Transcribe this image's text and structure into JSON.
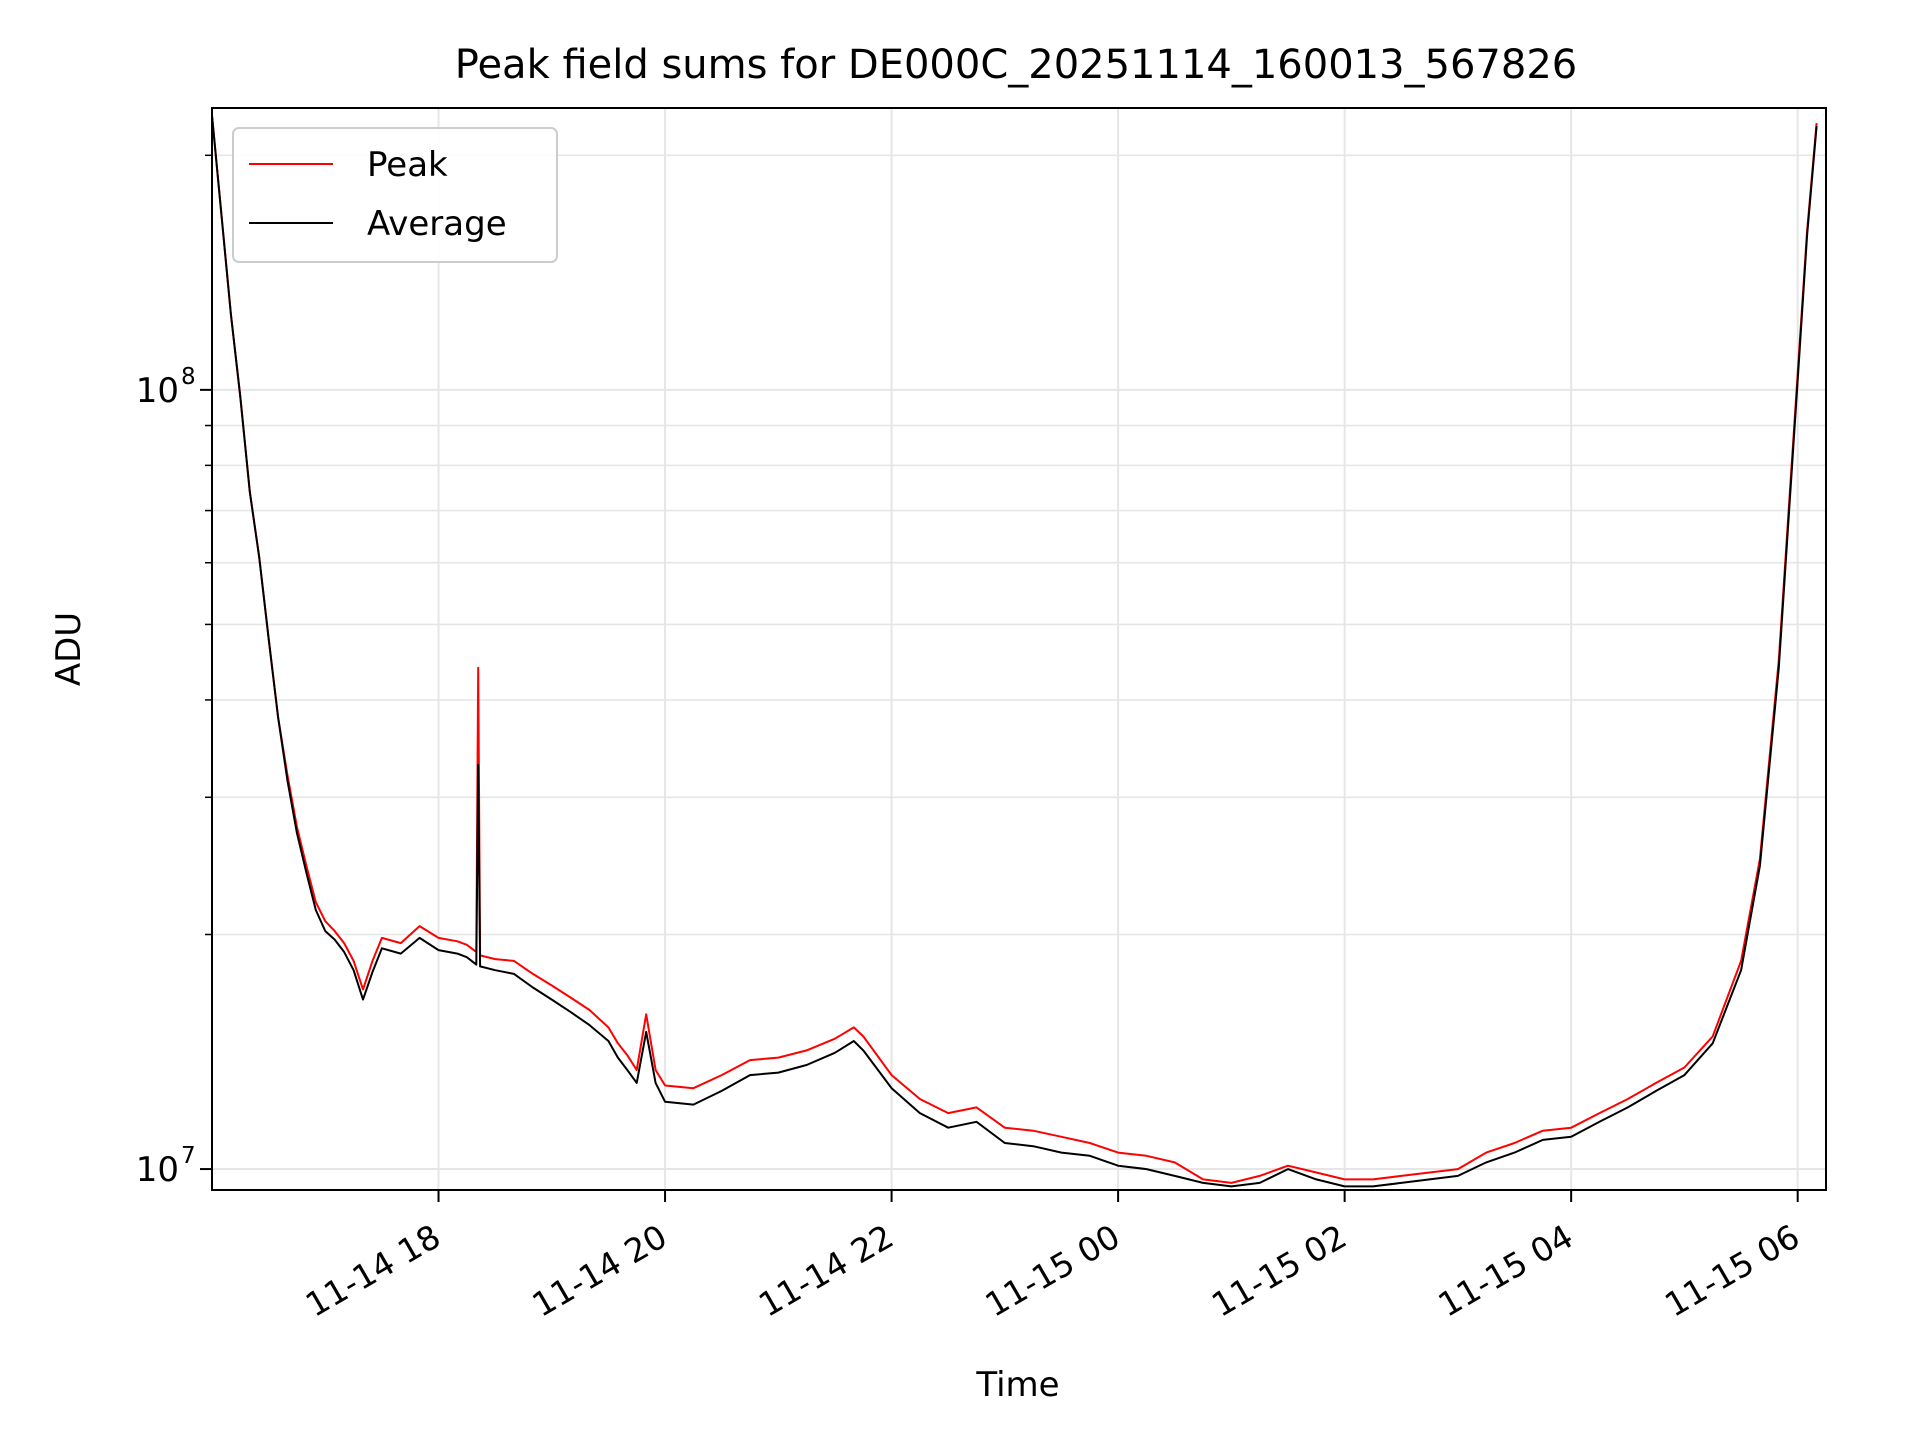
{
  "chart_data": {
    "type": "line",
    "title": "Peak field sums for DE000C_20251114_160013_567826",
    "xlabel": "Time",
    "ylabel": "ADU",
    "y_scale": "log",
    "ylim": [
      9400000,
      230000000
    ],
    "xlim": [
      "2025-11-14 16:00",
      "2025-11-15 06:15"
    ],
    "grid": true,
    "legend_position": "upper left",
    "x_ticks": [
      {
        "value": "2025-11-14 18:00",
        "label": "11-14 18"
      },
      {
        "value": "2025-11-14 20:00",
        "label": "11-14 20"
      },
      {
        "value": "2025-11-14 22:00",
        "label": "11-14 22"
      },
      {
        "value": "2025-11-15 00:00",
        "label": "11-15 00"
      },
      {
        "value": "2025-11-15 02:00",
        "label": "11-15 02"
      },
      {
        "value": "2025-11-15 04:00",
        "label": "11-15 04"
      },
      {
        "value": "2025-11-15 06:00",
        "label": "11-15 06"
      }
    ],
    "y_ticks": [
      {
        "value": 10000000,
        "base": "10",
        "exp": "7"
      },
      {
        "value": 100000000,
        "base": "10",
        "exp": "8"
      }
    ],
    "series": [
      {
        "name": "Peak",
        "color": "#ff0000",
        "points": [
          [
            "2025-11-14 16:00",
            225000000
          ],
          [
            "2025-11-14 16:05",
            168000000
          ],
          [
            "2025-11-14 16:10",
            125000000
          ],
          [
            "2025-11-14 16:15",
            98000000
          ],
          [
            "2025-11-14 16:20",
            74000000
          ],
          [
            "2025-11-14 16:25",
            61000000
          ],
          [
            "2025-11-14 16:30",
            48000000
          ],
          [
            "2025-11-14 16:35",
            38000000
          ],
          [
            "2025-11-14 16:40",
            32000000
          ],
          [
            "2025-11-14 16:45",
            27500000
          ],
          [
            "2025-11-14 16:50",
            24500000
          ],
          [
            "2025-11-14 16:55",
            22000000
          ],
          [
            "2025-11-14 17:00",
            20800000
          ],
          [
            "2025-11-14 17:05",
            20200000
          ],
          [
            "2025-11-14 17:10",
            19500000
          ],
          [
            "2025-11-14 17:15",
            18500000
          ],
          [
            "2025-11-14 17:20",
            17000000
          ],
          [
            "2025-11-14 17:25",
            18500000
          ],
          [
            "2025-11-14 17:30",
            19800000
          ],
          [
            "2025-11-14 17:40",
            19500000
          ],
          [
            "2025-11-14 17:50",
            20500000
          ],
          [
            "2025-11-14 18:00",
            19800000
          ],
          [
            "2025-11-14 18:10",
            19600000
          ],
          [
            "2025-11-14 18:15",
            19400000
          ],
          [
            "2025-11-14 18:20",
            19000000
          ],
          [
            "2025-11-14 18:21",
            44000000
          ],
          [
            "2025-11-14 18:22",
            18800000
          ],
          [
            "2025-11-14 18:30",
            18600000
          ],
          [
            "2025-11-14 18:40",
            18500000
          ],
          [
            "2025-11-14 18:50",
            17800000
          ],
          [
            "2025-11-14 19:00",
            17200000
          ],
          [
            "2025-11-14 19:10",
            16600000
          ],
          [
            "2025-11-14 19:20",
            16000000
          ],
          [
            "2025-11-14 19:30",
            15200000
          ],
          [
            "2025-11-14 19:35",
            14500000
          ],
          [
            "2025-11-14 19:40",
            14000000
          ],
          [
            "2025-11-14 19:45",
            13400000
          ],
          [
            "2025-11-14 19:50",
            15800000
          ],
          [
            "2025-11-14 19:55",
            13400000
          ],
          [
            "2025-11-14 20:00",
            12800000
          ],
          [
            "2025-11-14 20:15",
            12700000
          ],
          [
            "2025-11-14 20:30",
            13200000
          ],
          [
            "2025-11-14 20:45",
            13800000
          ],
          [
            "2025-11-14 21:00",
            13900000
          ],
          [
            "2025-11-14 21:15",
            14200000
          ],
          [
            "2025-11-14 21:30",
            14700000
          ],
          [
            "2025-11-14 21:40",
            15200000
          ],
          [
            "2025-11-14 21:45",
            14800000
          ],
          [
            "2025-11-14 22:00",
            13200000
          ],
          [
            "2025-11-14 22:15",
            12300000
          ],
          [
            "2025-11-14 22:30",
            11800000
          ],
          [
            "2025-11-14 22:45",
            12000000
          ],
          [
            "2025-11-14 23:00",
            11300000
          ],
          [
            "2025-11-14 23:15",
            11200000
          ],
          [
            "2025-11-14 23:30",
            11000000
          ],
          [
            "2025-11-14 23:45",
            10800000
          ],
          [
            "2025-11-15 00:00",
            10500000
          ],
          [
            "2025-11-15 00:15",
            10400000
          ],
          [
            "2025-11-15 00:30",
            10200000
          ],
          [
            "2025-11-15 00:45",
            9700000
          ],
          [
            "2025-11-15 01:00",
            9600000
          ],
          [
            "2025-11-15 01:15",
            9800000
          ],
          [
            "2025-11-15 01:30",
            10100000
          ],
          [
            "2025-11-15 01:45",
            9900000
          ],
          [
            "2025-11-15 02:00",
            9700000
          ],
          [
            "2025-11-15 02:15",
            9700000
          ],
          [
            "2025-11-15 02:30",
            9800000
          ],
          [
            "2025-11-15 02:45",
            9900000
          ],
          [
            "2025-11-15 03:00",
            10000000
          ],
          [
            "2025-11-15 03:15",
            10500000
          ],
          [
            "2025-11-15 03:30",
            10800000
          ],
          [
            "2025-11-15 03:45",
            11200000
          ],
          [
            "2025-11-15 04:00",
            11300000
          ],
          [
            "2025-11-15 04:15",
            11800000
          ],
          [
            "2025-11-15 04:30",
            12300000
          ],
          [
            "2025-11-15 04:45",
            12900000
          ],
          [
            "2025-11-15 05:00",
            13500000
          ],
          [
            "2025-11-15 05:15",
            14800000
          ],
          [
            "2025-11-15 05:30",
            18500000
          ],
          [
            "2025-11-15 05:40",
            25000000
          ],
          [
            "2025-11-15 05:50",
            45000000
          ],
          [
            "2025-11-15 06:00",
            105000000
          ],
          [
            "2025-11-15 06:05",
            160000000
          ],
          [
            "2025-11-15 06:10",
            220000000
          ]
        ]
      },
      {
        "name": "Average",
        "color": "#000000",
        "points": [
          [
            "2025-11-14 16:00",
            225000000
          ],
          [
            "2025-11-14 16:05",
            168000000
          ],
          [
            "2025-11-14 16:10",
            125000000
          ],
          [
            "2025-11-14 16:15",
            98000000
          ],
          [
            "2025-11-14 16:20",
            74000000
          ],
          [
            "2025-11-14 16:25",
            61000000
          ],
          [
            "2025-11-14 16:30",
            48000000
          ],
          [
            "2025-11-14 16:35",
            38000000
          ],
          [
            "2025-11-14 16:40",
            31500000
          ],
          [
            "2025-11-14 16:45",
            27000000
          ],
          [
            "2025-11-14 16:50",
            24000000
          ],
          [
            "2025-11-14 16:55",
            21500000
          ],
          [
            "2025-11-14 17:00",
            20200000
          ],
          [
            "2025-11-14 17:05",
            19700000
          ],
          [
            "2025-11-14 17:10",
            19000000
          ],
          [
            "2025-11-14 17:15",
            18000000
          ],
          [
            "2025-11-14 17:20",
            16500000
          ],
          [
            "2025-11-14 17:25",
            17900000
          ],
          [
            "2025-11-14 17:30",
            19200000
          ],
          [
            "2025-11-14 17:40",
            18900000
          ],
          [
            "2025-11-14 17:50",
            19800000
          ],
          [
            "2025-11-14 18:00",
            19100000
          ],
          [
            "2025-11-14 18:10",
            18900000
          ],
          [
            "2025-11-14 18:15",
            18700000
          ],
          [
            "2025-11-14 18:20",
            18300000
          ],
          [
            "2025-11-14 18:21",
            33000000
          ],
          [
            "2025-11-14 18:22",
            18200000
          ],
          [
            "2025-11-14 18:30",
            18000000
          ],
          [
            "2025-11-14 18:40",
            17800000
          ],
          [
            "2025-11-14 18:50",
            17100000
          ],
          [
            "2025-11-14 19:00",
            16500000
          ],
          [
            "2025-11-14 19:10",
            15900000
          ],
          [
            "2025-11-14 19:20",
            15300000
          ],
          [
            "2025-11-14 19:30",
            14600000
          ],
          [
            "2025-11-14 19:35",
            13900000
          ],
          [
            "2025-11-14 19:40",
            13400000
          ],
          [
            "2025-11-14 19:45",
            12900000
          ],
          [
            "2025-11-14 19:50",
            15000000
          ],
          [
            "2025-11-14 19:55",
            12900000
          ],
          [
            "2025-11-14 20:00",
            12200000
          ],
          [
            "2025-11-14 20:15",
            12100000
          ],
          [
            "2025-11-14 20:30",
            12600000
          ],
          [
            "2025-11-14 20:45",
            13200000
          ],
          [
            "2025-11-14 21:00",
            13300000
          ],
          [
            "2025-11-14 21:15",
            13600000
          ],
          [
            "2025-11-14 21:30",
            14100000
          ],
          [
            "2025-11-14 21:40",
            14600000
          ],
          [
            "2025-11-14 21:45",
            14200000
          ],
          [
            "2025-11-14 22:00",
            12700000
          ],
          [
            "2025-11-14 22:15",
            11800000
          ],
          [
            "2025-11-14 22:30",
            11300000
          ],
          [
            "2025-11-14 22:45",
            11500000
          ],
          [
            "2025-11-14 23:00",
            10800000
          ],
          [
            "2025-11-14 23:15",
            10700000
          ],
          [
            "2025-11-14 23:30",
            10500000
          ],
          [
            "2025-11-14 23:45",
            10400000
          ],
          [
            "2025-11-15 00:00",
            10100000
          ],
          [
            "2025-11-15 00:15",
            10000000
          ],
          [
            "2025-11-15 00:30",
            9800000
          ],
          [
            "2025-11-15 00:45",
            9600000
          ],
          [
            "2025-11-15 01:00",
            9500000
          ],
          [
            "2025-11-15 01:15",
            9600000
          ],
          [
            "2025-11-15 01:30",
            10000000
          ],
          [
            "2025-11-15 01:45",
            9700000
          ],
          [
            "2025-11-15 02:00",
            9500000
          ],
          [
            "2025-11-15 02:15",
            9500000
          ],
          [
            "2025-11-15 02:30",
            9600000
          ],
          [
            "2025-11-15 02:45",
            9700000
          ],
          [
            "2025-11-15 03:00",
            9800000
          ],
          [
            "2025-11-15 03:15",
            10200000
          ],
          [
            "2025-11-15 03:30",
            10500000
          ],
          [
            "2025-11-15 03:45",
            10900000
          ],
          [
            "2025-11-15 04:00",
            11000000
          ],
          [
            "2025-11-15 04:15",
            11500000
          ],
          [
            "2025-11-15 04:30",
            12000000
          ],
          [
            "2025-11-15 04:45",
            12600000
          ],
          [
            "2025-11-15 05:00",
            13200000
          ],
          [
            "2025-11-15 05:15",
            14500000
          ],
          [
            "2025-11-15 05:30",
            18000000
          ],
          [
            "2025-11-15 05:40",
            24500000
          ],
          [
            "2025-11-15 05:50",
            44000000
          ],
          [
            "2025-11-15 06:00",
            103000000
          ],
          [
            "2025-11-15 06:05",
            158000000
          ],
          [
            "2025-11-15 06:10",
            218000000
          ]
        ]
      }
    ]
  }
}
